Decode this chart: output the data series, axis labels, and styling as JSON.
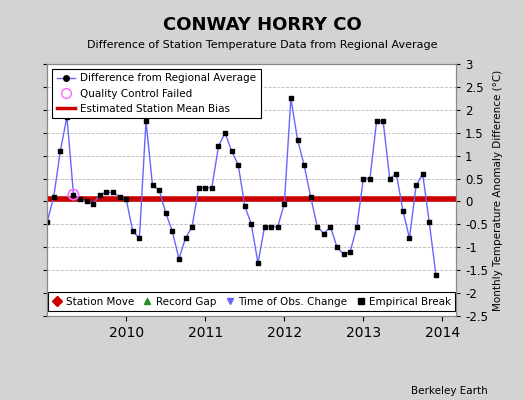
{
  "title": "CONWAY HORRY CO",
  "subtitle": "Difference of Station Temperature Data from Regional Average",
  "ylabel_right": "Monthly Temperature Anomaly Difference (°C)",
  "credit": "Berkeley Earth",
  "ylim": [
    -2.5,
    3.0
  ],
  "yticks": [
    -2.5,
    -2,
    -1.5,
    -1,
    -0.5,
    0,
    0.5,
    1,
    1.5,
    2,
    2.5,
    3
  ],
  "ylabels_right": [
    "-2.5",
    "-2",
    "-1.5",
    "-1",
    "-0.5",
    "0",
    "0.5",
    "1",
    "1.5",
    "2",
    "2.5",
    "3"
  ],
  "bias": 0.05,
  "background_color": "#d3d3d3",
  "plot_background": "#ffffff",
  "line_color": "#6666ff",
  "dot_color": "#000000",
  "bias_color": "#cc0000",
  "qc_color": "#ff66ff",
  "xlim_left": 2009.0,
  "xlim_right": 2014.17,
  "xtick_positions": [
    2010,
    2011,
    2012,
    2013,
    2014
  ],
  "data_x": [
    2009.0,
    2009.083,
    2009.167,
    2009.25,
    2009.333,
    2009.417,
    2009.5,
    2009.583,
    2009.667,
    2009.75,
    2009.833,
    2009.917,
    2010.0,
    2010.083,
    2010.167,
    2010.25,
    2010.333,
    2010.417,
    2010.5,
    2010.583,
    2010.667,
    2010.75,
    2010.833,
    2010.917,
    2011.0,
    2011.083,
    2011.167,
    2011.25,
    2011.333,
    2011.417,
    2011.5,
    2011.583,
    2011.667,
    2011.75,
    2011.833,
    2011.917,
    2012.0,
    2012.083,
    2012.167,
    2012.25,
    2012.333,
    2012.417,
    2012.5,
    2012.583,
    2012.667,
    2012.75,
    2012.833,
    2012.917,
    2013.0,
    2013.083,
    2013.167,
    2013.25,
    2013.333,
    2013.417,
    2013.5,
    2013.583,
    2013.667,
    2013.75,
    2013.833,
    2013.917
  ],
  "data_y": [
    -0.45,
    0.1,
    1.1,
    1.85,
    0.15,
    0.05,
    0.0,
    -0.05,
    0.15,
    0.2,
    0.2,
    0.1,
    0.05,
    -0.65,
    -0.8,
    1.75,
    0.35,
    0.25,
    -0.25,
    -0.65,
    -1.25,
    -0.8,
    -0.55,
    0.3,
    0.3,
    0.3,
    1.2,
    1.5,
    1.1,
    0.8,
    -0.1,
    -0.5,
    -1.35,
    -0.55,
    -0.55,
    -0.55,
    -0.05,
    2.25,
    1.35,
    0.8,
    0.1,
    -0.55,
    -0.7,
    -0.55,
    -1.0,
    -1.15,
    -1.1,
    -0.55,
    0.5,
    0.5,
    1.75,
    1.75,
    0.5,
    0.6,
    -0.2,
    -0.8,
    0.35,
    0.6,
    -0.45,
    -1.6
  ],
  "qc_x": [
    2009.333
  ],
  "qc_y": [
    0.15
  ]
}
